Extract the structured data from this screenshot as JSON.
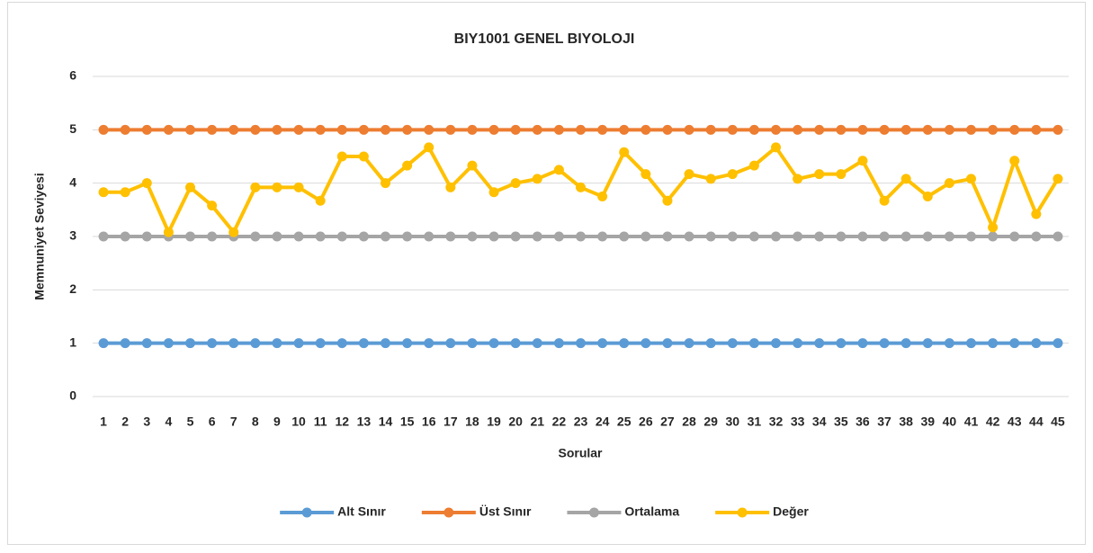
{
  "chart_data": {
    "type": "line",
    "title": "BIY1001 GENEL BIYOLOJI",
    "xlabel": "Sorular",
    "ylabel": "Memnuniyet Seviyesi",
    "categories": [
      "1",
      "2",
      "3",
      "4",
      "5",
      "6",
      "7",
      "8",
      "9",
      "10",
      "11",
      "12",
      "13",
      "14",
      "15",
      "16",
      "17",
      "18",
      "19",
      "20",
      "21",
      "22",
      "23",
      "24",
      "25",
      "26",
      "27",
      "28",
      "29",
      "30",
      "31",
      "32",
      "33",
      "34",
      "35",
      "36",
      "37",
      "38",
      "39",
      "40",
      "41",
      "42",
      "43",
      "44",
      "45"
    ],
    "ylim": [
      0,
      6
    ],
    "yticks": [
      0,
      1,
      2,
      3,
      4,
      5,
      6
    ],
    "grid": true,
    "legend": "bottom",
    "series": [
      {
        "name": "Alt Sınır",
        "color": "#5b9bd5",
        "values": [
          1,
          1,
          1,
          1,
          1,
          1,
          1,
          1,
          1,
          1,
          1,
          1,
          1,
          1,
          1,
          1,
          1,
          1,
          1,
          1,
          1,
          1,
          1,
          1,
          1,
          1,
          1,
          1,
          1,
          1,
          1,
          1,
          1,
          1,
          1,
          1,
          1,
          1,
          1,
          1,
          1,
          1,
          1,
          1,
          1
        ]
      },
      {
        "name": "Üst Sınır",
        "color": "#ed7d31",
        "values": [
          5,
          5,
          5,
          5,
          5,
          5,
          5,
          5,
          5,
          5,
          5,
          5,
          5,
          5,
          5,
          5,
          5,
          5,
          5,
          5,
          5,
          5,
          5,
          5,
          5,
          5,
          5,
          5,
          5,
          5,
          5,
          5,
          5,
          5,
          5,
          5,
          5,
          5,
          5,
          5,
          5,
          5,
          5,
          5,
          5
        ]
      },
      {
        "name": "Ortalama",
        "color": "#a5a5a5",
        "values": [
          3,
          3,
          3,
          3,
          3,
          3,
          3,
          3,
          3,
          3,
          3,
          3,
          3,
          3,
          3,
          3,
          3,
          3,
          3,
          3,
          3,
          3,
          3,
          3,
          3,
          3,
          3,
          3,
          3,
          3,
          3,
          3,
          3,
          3,
          3,
          3,
          3,
          3,
          3,
          3,
          3,
          3,
          3,
          3,
          3
        ]
      },
      {
        "name": "Değer",
        "color": "#ffc000",
        "values": [
          3.83,
          3.83,
          4.0,
          3.08,
          3.92,
          3.58,
          3.08,
          3.92,
          3.92,
          3.92,
          3.67,
          4.5,
          4.5,
          4.0,
          4.33,
          4.67,
          3.92,
          4.33,
          3.83,
          4.0,
          4.08,
          4.25,
          3.92,
          3.75,
          4.58,
          4.17,
          3.67,
          4.17,
          4.08,
          4.17,
          4.33,
          4.67,
          4.08,
          4.17,
          4.17,
          4.42,
          3.67,
          4.08,
          3.75,
          4.0,
          4.08,
          3.17,
          4.42,
          3.42,
          4.08
        ]
      }
    ]
  }
}
